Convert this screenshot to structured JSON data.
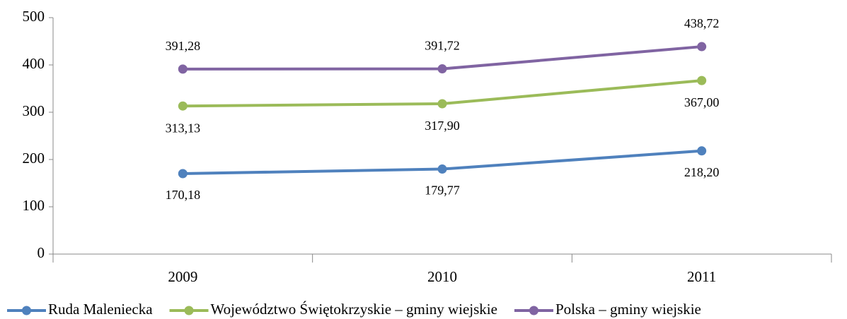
{
  "chart_data": {
    "type": "line",
    "categories": [
      "2009",
      "2010",
      "2011"
    ],
    "series": [
      {
        "name": "Ruda Maleniecka",
        "color": "#4f81bd",
        "values": [
          170.18,
          179.77,
          218.2
        ],
        "value_labels": [
          "170,18",
          "179,77",
          "218,20"
        ]
      },
      {
        "name": "Województwo Świętokrzyskie – gminy wiejskie",
        "color": "#9bbb59",
        "values": [
          313.13,
          317.9,
          367.0
        ],
        "value_labels": [
          "313,13",
          "317,90",
          "367,00"
        ]
      },
      {
        "name": "Polska – gminy wiejskie",
        "color": "#8064a2",
        "values": [
          391.28,
          391.72,
          438.72
        ],
        "value_labels": [
          "391,28",
          "391,72",
          "438,72"
        ]
      }
    ],
    "ylim": [
      0,
      500
    ],
    "yticks": [
      0,
      100,
      200,
      300,
      400,
      500
    ],
    "grid": false,
    "legend": "bottom"
  }
}
